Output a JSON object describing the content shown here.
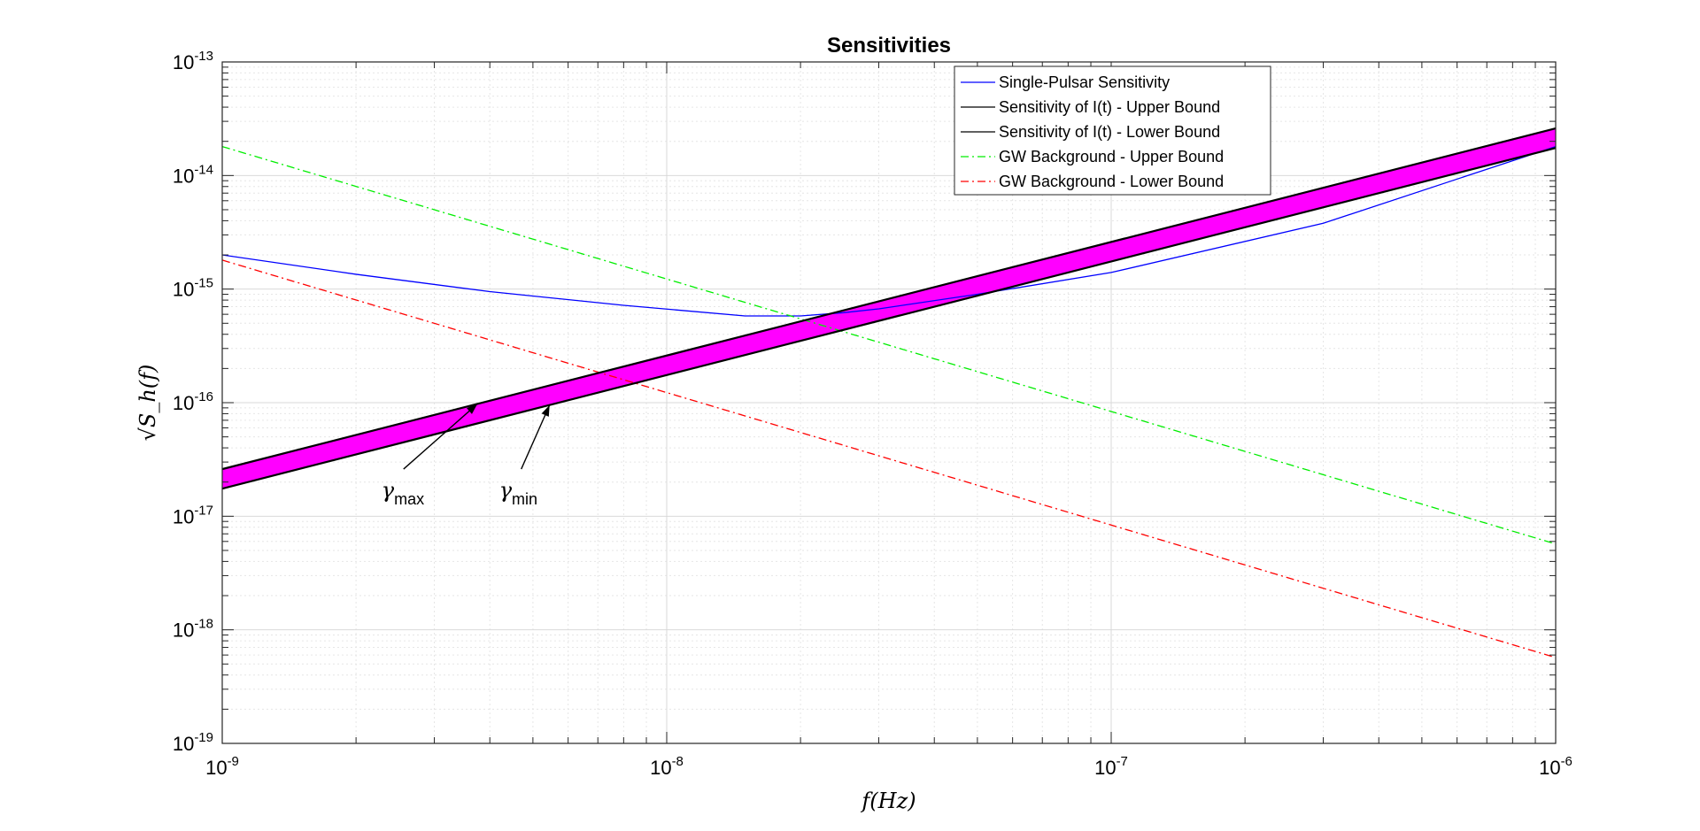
{
  "chart_data": {
    "type": "line",
    "title": "Sensitivities",
    "xlabel": "f(Hz)",
    "ylabel": "√S_h(f)",
    "xscale": "log",
    "yscale": "log",
    "xlim": [
      1e-09,
      1e-06
    ],
    "ylim": [
      1e-19,
      1e-13
    ],
    "grid": true,
    "legend_position": "top-right",
    "x_ticks": [
      {
        "base": "10",
        "exp": "-9",
        "value": 1e-09
      },
      {
        "base": "10",
        "exp": "-8",
        "value": 1e-08
      },
      {
        "base": "10",
        "exp": "-7",
        "value": 1e-07
      },
      {
        "base": "10",
        "exp": "-6",
        "value": 1e-06
      }
    ],
    "y_ticks": [
      {
        "base": "10",
        "exp": "-13",
        "value": 1e-13
      },
      {
        "base": "10",
        "exp": "-14",
        "value": 1e-14
      },
      {
        "base": "10",
        "exp": "-15",
        "value": 1e-15
      },
      {
        "base": "10",
        "exp": "-16",
        "value": 1e-16
      },
      {
        "base": "10",
        "exp": "-17",
        "value": 1e-17
      },
      {
        "base": "10",
        "exp": "-18",
        "value": 1e-18
      },
      {
        "base": "10",
        "exp": "-19",
        "value": 1e-19
      }
    ],
    "series": [
      {
        "name": "Single-Pulsar Sensitivity",
        "color": "#0000ff",
        "style": "solid",
        "x": [
          1e-09,
          2e-09,
          4e-09,
          8e-09,
          1.5e-08,
          2e-08,
          2.5e-08,
          3e-08,
          5e-08,
          1e-07,
          3e-07,
          1e-06
        ],
        "y": [
          2e-15,
          1.35e-15,
          9.5e-16,
          7.2e-16,
          5.8e-16,
          5.8e-16,
          6.2e-16,
          6.7e-16,
          9e-16,
          1.4e-15,
          3.8e-15,
          1.8e-14
        ]
      },
      {
        "name": "Sensitivity of I(t) - Upper Bound",
        "color": "#000000",
        "style": "solid",
        "x": [
          1e-09,
          1e-06
        ],
        "y": [
          2.6e-17,
          2.6e-14
        ]
      },
      {
        "name": "Sensitivity of I(t) - Lower Bound",
        "color": "#000000",
        "style": "solid",
        "x": [
          1e-09,
          1e-06
        ],
        "y": [
          1.75e-17,
          1.75e-14
        ]
      },
      {
        "name": "GW Background - Upper Bound",
        "color": "#00ee00",
        "style": "dashdot",
        "x": [
          1e-09,
          1e-06
        ],
        "y": [
          1.8e-14,
          5.7e-18
        ]
      },
      {
        "name": "GW Background - Lower Bound",
        "color": "#ff0000",
        "style": "dashdot",
        "x": [
          1e-09,
          1e-06
        ],
        "y": [
          1.8e-15,
          5.7e-19
        ]
      }
    ],
    "fill_between": {
      "upper_series": 1,
      "lower_series": 2,
      "color": "#ff00ff"
    },
    "annotations": [
      {
        "symbol": "γ",
        "subscript": "max",
        "x": 2.5e-09,
        "y": 2.6e-17,
        "arrow_x": 3.75e-09,
        "arrow_y": 9.75e-17
      },
      {
        "symbol": "γ",
        "subscript": "min",
        "x": 4.6e-09,
        "y": 2.6e-17,
        "arrow_x": 5.45e-09,
        "arrow_y": 9.5e-17
      }
    ]
  }
}
